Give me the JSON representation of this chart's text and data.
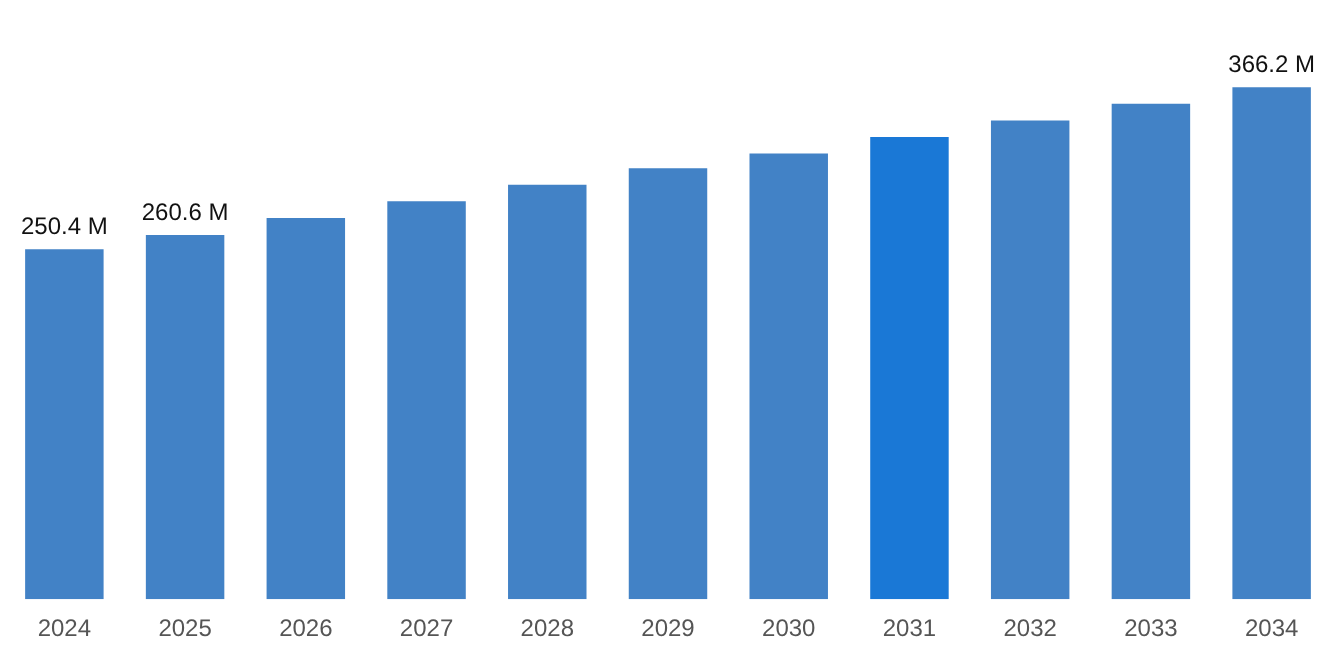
{
  "chart_data": {
    "type": "bar",
    "categories": [
      "2024",
      "2025",
      "2026",
      "2027",
      "2028",
      "2029",
      "2030",
      "2031",
      "2032",
      "2033",
      "2034"
    ],
    "values": [
      250.4,
      260.6,
      272.7,
      284.6,
      296.4,
      308.3,
      318.8,
      330.7,
      342.5,
      354.4,
      366.2
    ],
    "colors": [
      "#4282c6",
      "#4282c6",
      "#4282c6",
      "#4282c6",
      "#4282c6",
      "#4282c6",
      "#4282c6",
      "#1a78d6",
      "#4282c6",
      "#4282c6",
      "#4282c6"
    ],
    "value_labels": [
      "250.4 M",
      "260.6 M",
      null,
      null,
      null,
      null,
      null,
      null,
      null,
      null,
      "366.2 M"
    ],
    "grid": false,
    "legend": false,
    "tick_labels": "x"
  }
}
